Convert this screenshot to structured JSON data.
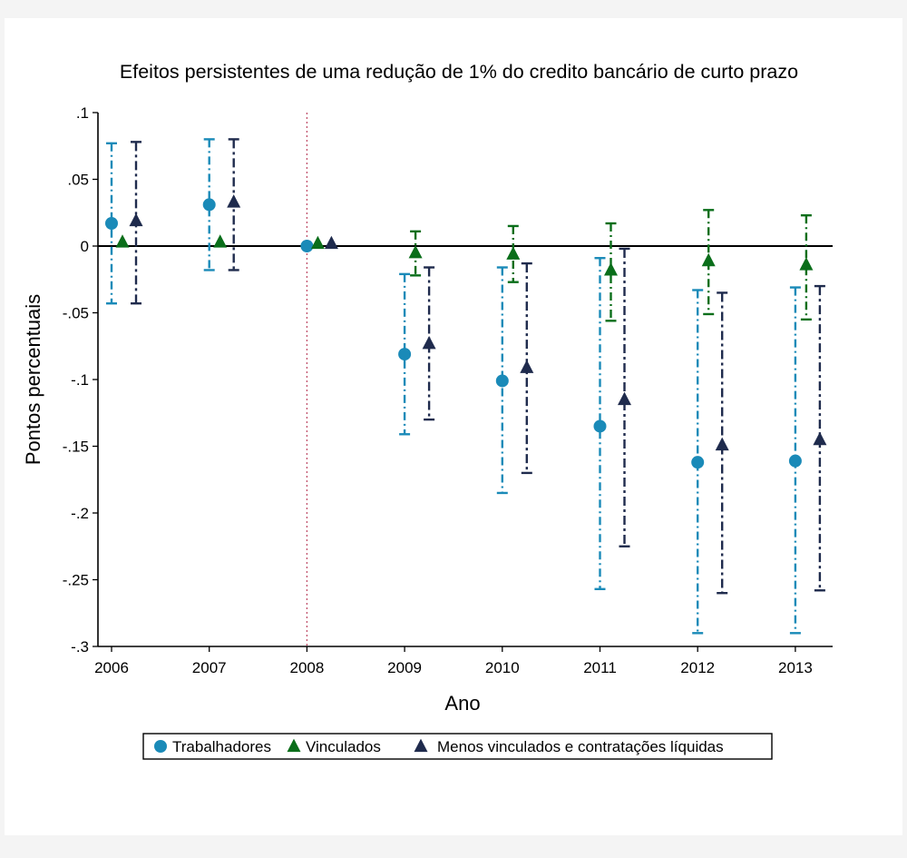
{
  "chart_data": {
    "type": "scatter",
    "title": "Efeitos persistentes de uma redução de 1% do credito bancário de curto prazo",
    "xlabel": "Ano",
    "ylabel": "Pontos percentuais",
    "categories": [
      "2006",
      "2007",
      "2008",
      "2009",
      "2010",
      "2011",
      "2012",
      "2013"
    ],
    "ylim": [
      -0.3,
      0.1
    ],
    "yticks": [
      0.1,
      0.05,
      0,
      -0.05,
      -0.1,
      -0.15,
      -0.2,
      -0.25,
      -0.3
    ],
    "ytick_labels": [
      ".1",
      ".05",
      "0",
      "-.05",
      "-.1",
      "-.15",
      "-.2",
      "-.25",
      "-.3"
    ],
    "reference_line_y": 0,
    "reference_line_x": "2008",
    "legend_position": "bottom",
    "series": [
      {
        "name": "Trabalhadores",
        "marker": "circle",
        "color": "#1a8ab8",
        "ci_dash": "dash-dot",
        "values": [
          0.017,
          0.031,
          0.0,
          -0.081,
          -0.101,
          -0.135,
          -0.162,
          -0.161
        ],
        "ci_low": [
          -0.043,
          -0.018,
          0.0,
          -0.141,
          -0.185,
          -0.257,
          -0.29,
          -0.29
        ],
        "ci_high": [
          0.077,
          0.08,
          0.0,
          -0.021,
          -0.016,
          -0.009,
          -0.033,
          -0.031
        ]
      },
      {
        "name": "Vinculados",
        "marker": "triangle",
        "color": "#0a6e1a",
        "ci_dash": "dash-dot",
        "values": [
          0.003,
          0.003,
          0.002,
          -0.005,
          -0.006,
          -0.018,
          -0.011,
          -0.014
        ],
        "ci_low": [
          null,
          null,
          null,
          -0.022,
          -0.027,
          -0.056,
          -0.051,
          -0.055
        ],
        "ci_high": [
          null,
          null,
          null,
          0.011,
          0.015,
          0.017,
          0.027,
          0.023
        ]
      },
      {
        "name": "Menos vinculados e contratações líquidas",
        "marker": "triangle",
        "color": "#1f2b4d",
        "ci_dash": "dash-dot-long",
        "values": [
          0.019,
          0.033,
          0.002,
          -0.073,
          -0.091,
          -0.115,
          -0.149,
          -0.145
        ],
        "ci_low": [
          -0.043,
          -0.018,
          null,
          -0.13,
          -0.17,
          -0.225,
          -0.26,
          -0.258
        ],
        "ci_high": [
          0.078,
          0.08,
          null,
          -0.016,
          -0.013,
          -0.002,
          -0.035,
          -0.03
        ]
      }
    ]
  }
}
